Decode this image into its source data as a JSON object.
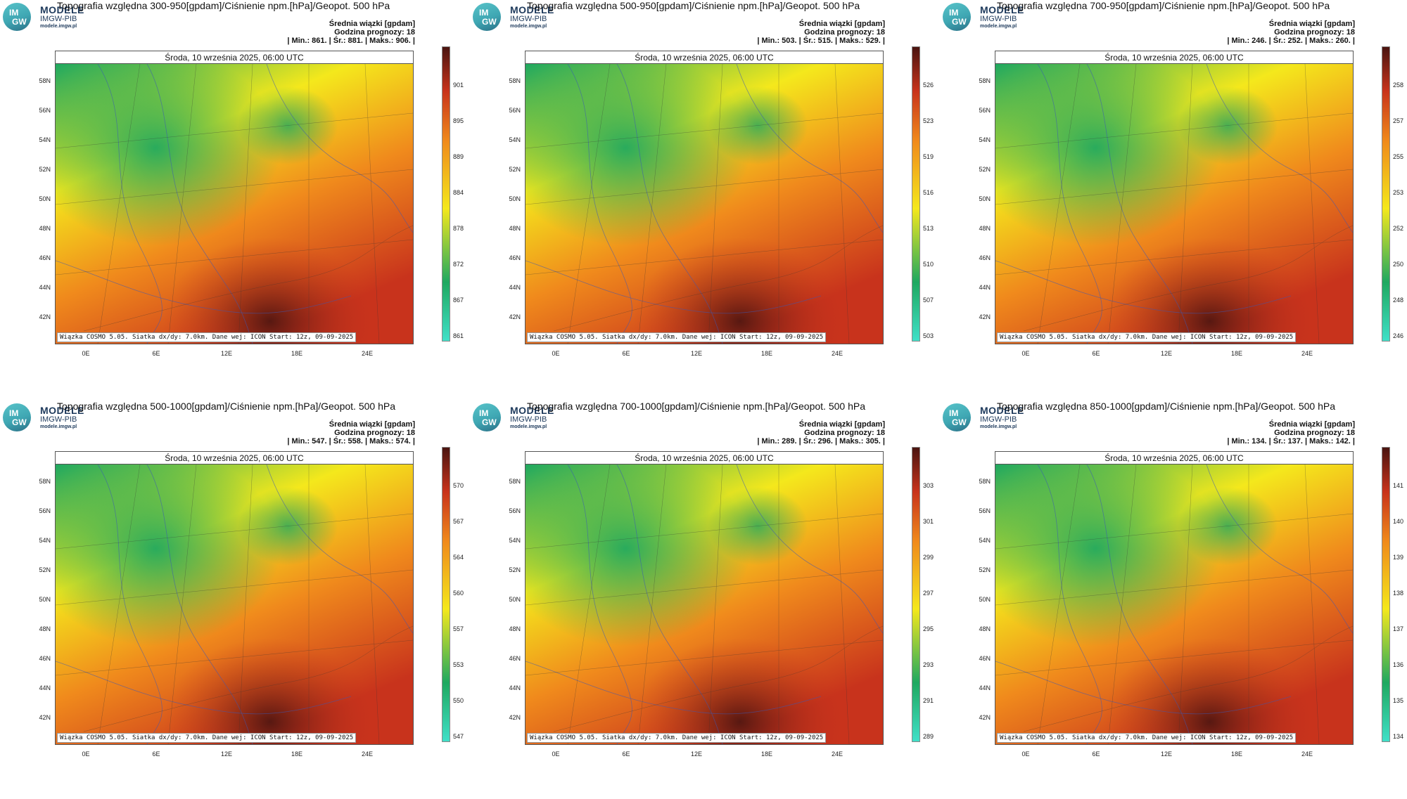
{
  "logo": {
    "line1": "IM",
    "line2": "GW",
    "brand": "MODELE",
    "org": "IMGW-PIB",
    "site": "modele.imgw.pl"
  },
  "common": {
    "layer_label": "Średnia wiązki [gpdam]",
    "forecast_hour": "Godzina prognozy: 18",
    "date": "Środa, 10 września 2025, 06:00 UTC",
    "footer": "Wiązka COSMO 5.05. Siatka dx/dy: 7.0km. Dane wej: ICON Start: 12z, 09-09-2025",
    "lat_labels": [
      "58N",
      "56N",
      "54N",
      "52N",
      "50N",
      "48N",
      "46N",
      "44N",
      "42N"
    ],
    "lon_labels": [
      "0E",
      "6E",
      "12E",
      "18E",
      "24E"
    ]
  },
  "panels": [
    {
      "title": "Topografia względna 300-950[gpdam]/Ciśnienie npm.[hPa]/Geopot. 500 hPa",
      "stats": "| Min.:   861. | Śr.:   881. | Maks.:   906. |",
      "min": 861,
      "mean": 881,
      "max": 906,
      "cbar_labels": [
        "901",
        "895",
        "889",
        "884",
        "878",
        "872",
        "867",
        "861"
      ]
    },
    {
      "title": "Topografia względna 500-950[gpdam]/Ciśnienie npm.[hPa]/Geopot. 500 hPa",
      "stats": "| Min.:   503. | Śr.:   515. | Maks.:   529. |",
      "min": 503,
      "mean": 515,
      "max": 529,
      "cbar_labels": [
        "526",
        "523",
        "519",
        "516",
        "513",
        "510",
        "507",
        "503"
      ]
    },
    {
      "title": "Topografia względna 700-950[gpdam]/Ciśnienie npm.[hPa]/Geopot. 500 hPa",
      "stats": "| Min.:   246. | Śr.:   252. | Maks.:   260. |",
      "min": 246,
      "mean": 252,
      "max": 260,
      "cbar_labels": [
        "258",
        "257",
        "255",
        "253",
        "252",
        "250",
        "248",
        "246"
      ]
    },
    {
      "title": "Topografia względna 500-1000[gpdam]/Ciśnienie npm.[hPa]/Geopot. 500 hPa",
      "stats": "| Min.:   547. | Śr.:   558. | Maks.:   574. |",
      "min": 547,
      "mean": 558,
      "max": 574,
      "cbar_labels": [
        "570",
        "567",
        "564",
        "560",
        "557",
        "553",
        "550",
        "547"
      ]
    },
    {
      "title": "Topografia względna 700-1000[gpdam]/Ciśnienie npm.[hPa]/Geopot. 500 hPa",
      "stats": "| Min.:   289. | Śr.:   296. | Maks.:   305. |",
      "min": 289,
      "mean": 296,
      "max": 305,
      "cbar_labels": [
        "303",
        "301",
        "299",
        "297",
        "295",
        "293",
        "291",
        "289"
      ]
    },
    {
      "title": "Topografia względna 850-1000[gpdam]/Ciśnienie npm.[hPa]/Geopot. 500 hPa",
      "stats": "| Min.:   134. | Śr.:   137. | Maks.:   142. |",
      "min": 134,
      "mean": 137,
      "max": 142,
      "cbar_labels": [
        "141",
        "140",
        "139",
        "138",
        "137",
        "136",
        "135",
        "134"
      ]
    }
  ],
  "colors": {
    "low": "#40e0c8",
    "mid_green": "#1fa860",
    "yellow": "#f4e81c",
    "orange": "#f08a1c",
    "red": "#c8331c",
    "high": "#4a1410",
    "contour": "#3a57b8"
  }
}
